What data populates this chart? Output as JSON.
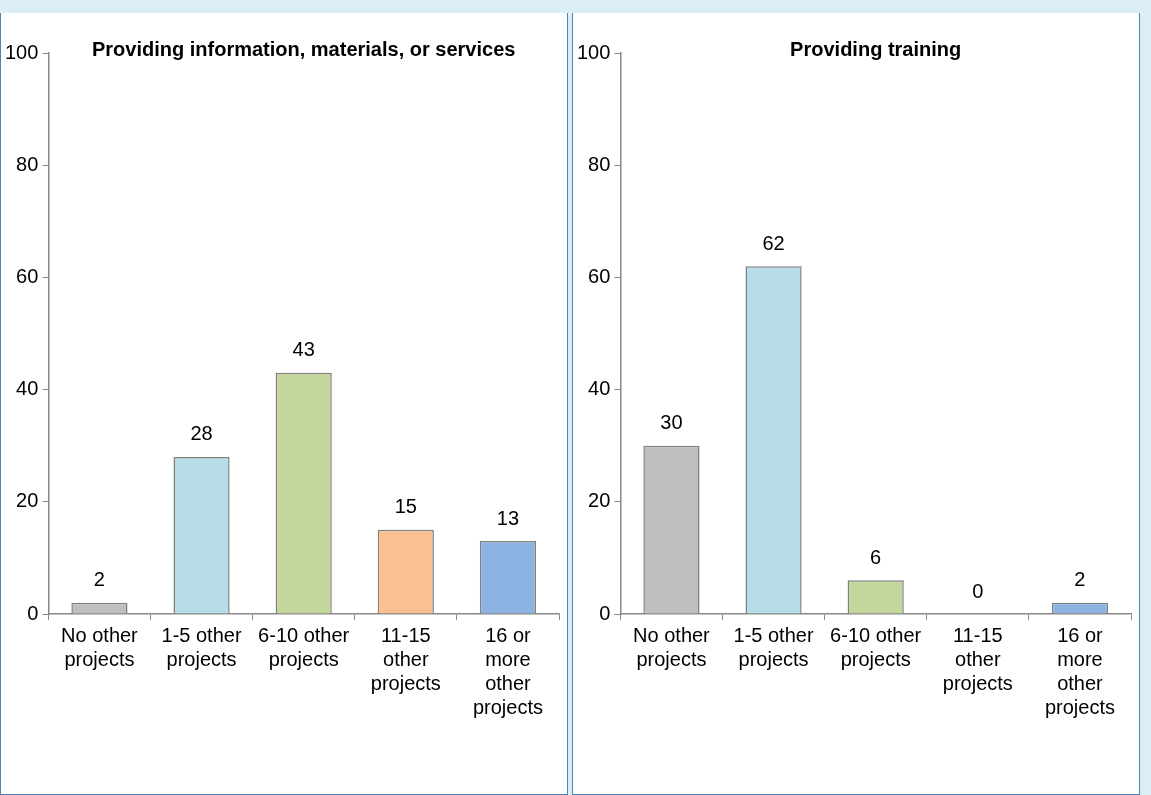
{
  "chart_data": [
    {
      "type": "bar",
      "title": "Providing information, materials, or services",
      "categories": [
        "No other projects",
        "1-5 other projects",
        "6-10 other projects",
        "11-15 other projects",
        "16 or more other projects"
      ],
      "values": [
        2,
        28,
        43,
        15,
        13
      ],
      "colors": [
        "#bfbfbf",
        "#b7dde8",
        "#c3d69b",
        "#fac090",
        "#8db3e2"
      ],
      "ylim": [
        0,
        100
      ],
      "yticks": [
        0,
        20,
        40,
        60,
        80,
        100
      ],
      "data_labels": true,
      "grid": false,
      "legend": false
    },
    {
      "type": "bar",
      "title": "Providing training",
      "categories": [
        "No other projects",
        "1-5 other projects",
        "6-10 other projects",
        "11-15 other projects",
        "16 or more other projects"
      ],
      "values": [
        30,
        62,
        6,
        0,
        2
      ],
      "colors": [
        "#bfbfbf",
        "#b7dde8",
        "#c3d69b",
        "#fac090",
        "#8db3e2"
      ],
      "ylim": [
        0,
        100
      ],
      "yticks": [
        0,
        20,
        40,
        60,
        80,
        100
      ],
      "data_labels": true,
      "grid": false,
      "legend": false
    }
  ]
}
